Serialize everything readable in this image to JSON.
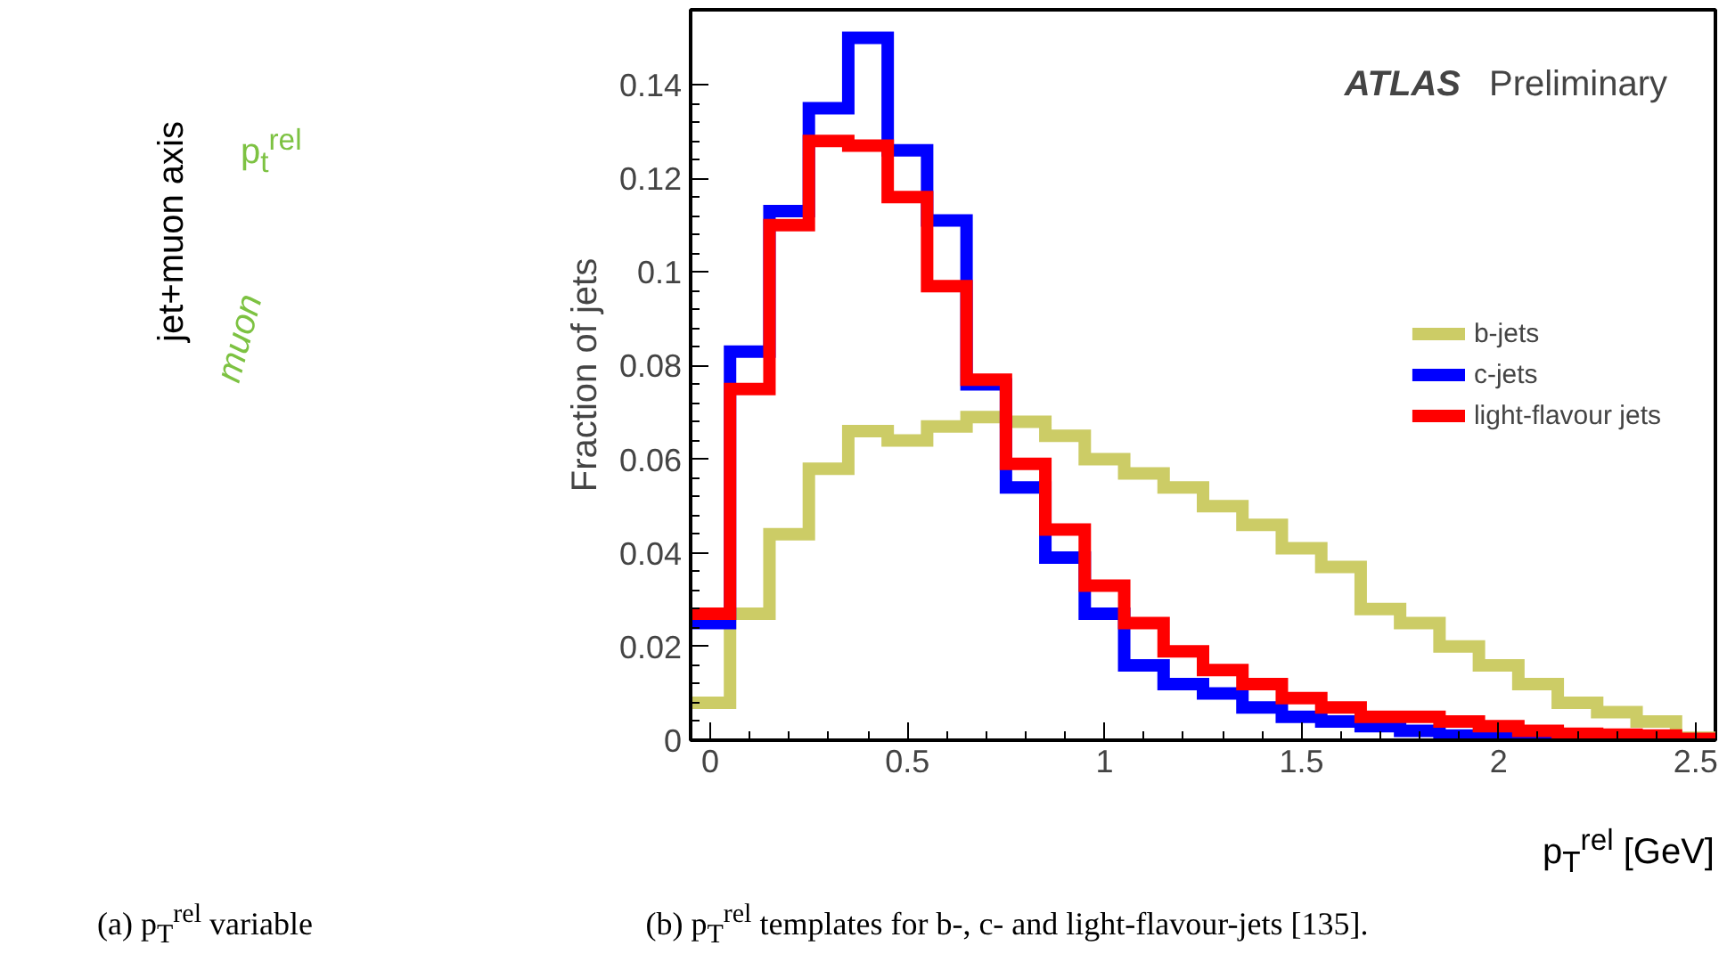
{
  "chart_data": [
    {
      "type": "other",
      "annotations": [
        "jet+muon axis",
        "p$_{t}$$^{rel}$",
        "muon",
        "(a) p$_{T}$$^{rel}$ variable"
      ]
    },
    {
      "type": "histogram",
      "ylabel": "Fraction of jets",
      "xlabel": "p$_{T}$$^{rel}$ [GeV]",
      "bins": [
        -0.05,
        0.05,
        0.15,
        0.25,
        0.35,
        0.45,
        0.55,
        0.65,
        0.75,
        0.85,
        0.95,
        1.05,
        1.15,
        1.25,
        1.35,
        1.45,
        1.55,
        1.65,
        1.75,
        1.85,
        1.95,
        2.05,
        2.15,
        2.25,
        2.35,
        2.45,
        2.55
      ],
      "series": [
        {
          "name": "b-jets",
          "color": "#cccc66",
          "values": [
            0.008,
            0.027,
            0.044,
            0.058,
            0.066,
            0.064,
            0.067,
            0.069,
            0.068,
            0.065,
            0.06,
            0.057,
            0.054,
            0.05,
            0.046,
            0.041,
            0.037,
            0.028,
            0.025,
            0.02,
            0.016,
            0.012,
            0.008,
            0.006,
            0.004,
            0.0005
          ]
        },
        {
          "name": "c-jets",
          "color": "#0000ff",
          "values": [
            0.025,
            0.083,
            0.113,
            0.135,
            0.15,
            0.126,
            0.111,
            0.076,
            0.054,
            0.039,
            0.027,
            0.016,
            0.012,
            0.01,
            0.007,
            0.005,
            0.004,
            0.003,
            0.002,
            0.001,
            0.0005,
            0.0003,
            0.0002,
            0.0002,
            0.0001,
            0
          ]
        },
        {
          "name": "light-flavour jets",
          "color": "#ff0000",
          "values": [
            0.027,
            0.075,
            0.11,
            0.128,
            0.127,
            0.116,
            0.097,
            0.077,
            0.059,
            0.045,
            0.033,
            0.025,
            0.019,
            0.015,
            0.012,
            0.009,
            0.007,
            0.005,
            0.005,
            0.004,
            0.003,
            0.002,
            0.0014,
            0.0012,
            0.001,
            0.0003
          ]
        }
      ],
      "xlim": [
        -0.05,
        2.55
      ],
      "ylim": [
        0,
        0.156
      ],
      "xticks": [
        0,
        0.5,
        1,
        1.5,
        2,
        2.5
      ],
      "yticks": [
        0,
        0.02,
        0.04,
        0.06,
        0.08,
        0.1,
        0.12,
        0.14
      ],
      "grid": false,
      "legend": "right",
      "annotations": [
        "ATLAS Preliminary",
        "(b) p$_{T}$$^{rel}$ templates for b-, c- and light-flavour-jets [135]."
      ]
    }
  ]
}
